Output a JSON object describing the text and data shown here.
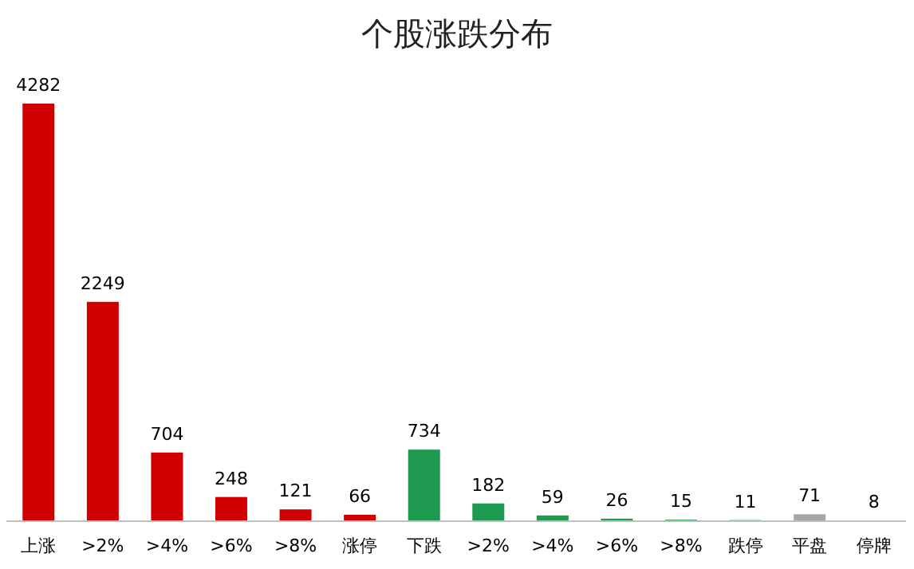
{
  "chart_data": {
    "type": "bar",
    "title": "个股涨跌分布",
    "categories": [
      "上涨",
      ">2%",
      ">4%",
      ">6%",
      ">8%",
      "涨停",
      "下跌",
      ">2%",
      ">4%",
      ">6%",
      ">8%",
      "跌停",
      "平盘",
      "停牌"
    ],
    "values": [
      4282,
      2249,
      704,
      248,
      121,
      66,
      734,
      182,
      59,
      26,
      15,
      11,
      71,
      8
    ],
    "colors": [
      "#d10000",
      "#d10000",
      "#d10000",
      "#d10000",
      "#d10000",
      "#d10000",
      "#1e9a50",
      "#1e9a50",
      "#1e9a50",
      "#1e9a50",
      "#1e9a50",
      "#1e9a50",
      "#a6a6a6",
      "#a6a6a6"
    ],
    "data_labels": true
  }
}
